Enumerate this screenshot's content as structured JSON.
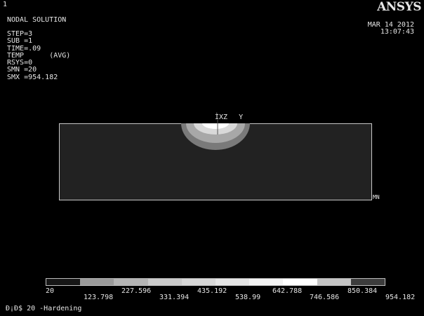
{
  "window": {
    "corner_number": "1"
  },
  "header": {
    "title": "NODAL SOLUTION",
    "lines": [
      "STEP=3",
      "SUB =1",
      "TIME=.09",
      "TEMP      (AVG)",
      "RSYS=0",
      "SMN =20",
      "SMX =954.182"
    ],
    "brand": "ANSYS",
    "date": "MAR 14 2012",
    "time": "13:07:43"
  },
  "model": {
    "triad_label": "Y",
    "triad_glyph": "ÌXZ",
    "min_marker": "MN",
    "colors": {
      "plate": "#222222",
      "outer_zone": "#7a7a7a",
      "middle_zone": "#a8a8a8",
      "inner_zone": "#d9d9d9",
      "core": "#ffffff"
    }
  },
  "legend": {
    "colors": [
      "#161616",
      "#9a9a9a",
      "#b4b4b4",
      "#cacaca",
      "#d7d7d7",
      "#e4e4e4",
      "#f2f2f2",
      "#ffffff",
      "#c4c4c4",
      "#3c3c3c"
    ],
    "values": [
      "20",
      "123.798",
      "227.596",
      "331.394",
      "435.192",
      "538.99",
      "642.788",
      "746.586",
      "850.384",
      "954.182"
    ]
  },
  "footer": {
    "text": "Ð¡Ð$ 20 -Hardening"
  }
}
